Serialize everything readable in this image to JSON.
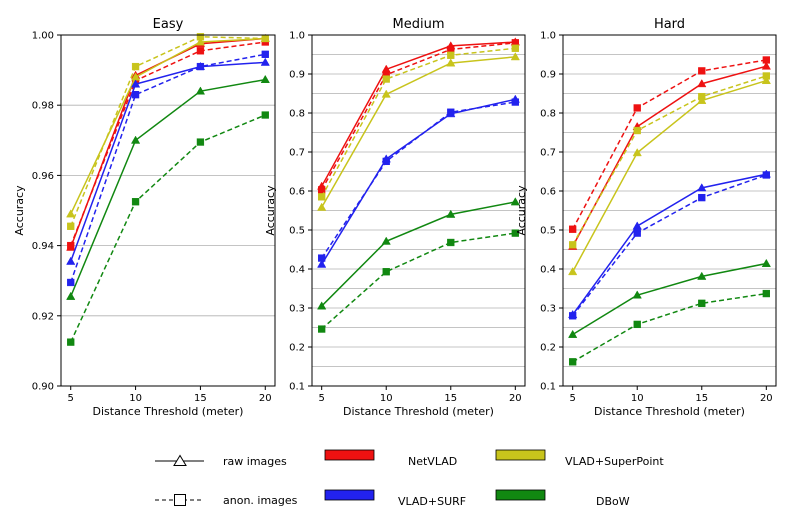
{
  "chart_data": {
    "type": "line",
    "x": [
      5,
      10,
      15,
      20
    ],
    "xlabel": "Distance Threshold (meter)",
    "ylabel": "Accuracy",
    "grid": "horizontal",
    "legend": {
      "placement": "bottom",
      "styles": [
        {
          "key": "raw",
          "label": "raw images",
          "marker": "triangle",
          "dash": "solid"
        },
        {
          "key": "anon",
          "label": "anon. images",
          "marker": "square",
          "dash": "dashed"
        }
      ],
      "methods": [
        {
          "key": "netvlad",
          "label": "NetVLAD",
          "color": "#ee1111"
        },
        {
          "key": "superpoint",
          "label": "VLAD+SuperPoint",
          "color": "#c8c41c"
        },
        {
          "key": "surf",
          "label": "VLAD+SURF",
          "color": "#2222ee"
        },
        {
          "key": "dbow",
          "label": "DBoW",
          "color": "#118811"
        }
      ]
    },
    "panels": [
      {
        "title": "Easy",
        "ylim": [
          0.9,
          1.0
        ],
        "yticks": [
          0.9,
          0.92,
          0.94,
          0.96,
          0.98,
          1.0
        ],
        "ytick_labels": [
          "0.90",
          "0.92",
          "0.94",
          "0.96",
          "0.98",
          "1.00"
        ],
        "grid_values": [
          0.92,
          0.94,
          0.96,
          0.98,
          1.0
        ],
        "series": [
          {
            "method": "netvlad",
            "style": "raw",
            "values": [
              0.9395,
              0.9885,
              0.9975,
              0.999
            ]
          },
          {
            "method": "netvlad",
            "style": "anon",
            "values": [
              0.94,
              0.987,
              0.9955,
              0.998
            ]
          },
          {
            "method": "superpoint",
            "style": "raw",
            "values": [
              0.949,
              0.988,
              0.998,
              0.999
            ]
          },
          {
            "method": "superpoint",
            "style": "anon",
            "values": [
              0.9455,
              0.991,
              0.9995,
              0.999
            ]
          },
          {
            "method": "surf",
            "style": "raw",
            "values": [
              0.9355,
              0.986,
              0.991,
              0.9922
            ]
          },
          {
            "method": "surf",
            "style": "anon",
            "values": [
              0.9295,
              0.983,
              0.991,
              0.9945
            ]
          },
          {
            "method": "dbow",
            "style": "raw",
            "values": [
              0.9255,
              0.97,
              0.984,
              0.9873
            ]
          },
          {
            "method": "dbow",
            "style": "anon",
            "values": [
              0.9125,
              0.9525,
              0.9695,
              0.9772
            ]
          }
        ]
      },
      {
        "title": "Medium",
        "ylim": [
          0.1,
          1.0
        ],
        "yticks": [
          0.1,
          0.2,
          0.3,
          0.4,
          0.5,
          0.6,
          0.7,
          0.8,
          0.9,
          1.0
        ],
        "ytick_labels": [
          "0.1",
          "0.2",
          "0.3",
          "0.4",
          "0.5",
          "0.6",
          "0.7",
          "0.8",
          "0.9",
          "1.0"
        ],
        "grid_values": [
          0.15,
          0.2,
          0.25,
          0.3,
          0.35,
          0.4,
          0.45,
          0.5,
          0.55,
          0.6,
          0.65,
          0.7,
          0.75,
          0.8,
          0.85,
          0.9,
          0.95,
          1.0
        ],
        "series": [
          {
            "method": "netvlad",
            "style": "raw",
            "values": [
              0.612,
              0.912,
              0.972,
              0.982
            ]
          },
          {
            "method": "netvlad",
            "style": "anon",
            "values": [
              0.603,
              0.898,
              0.963,
              0.98
            ]
          },
          {
            "method": "superpoint",
            "style": "raw",
            "values": [
              0.558,
              0.848,
              0.928,
              0.944
            ]
          },
          {
            "method": "superpoint",
            "style": "anon",
            "values": [
              0.585,
              0.887,
              0.948,
              0.966
            ]
          },
          {
            "method": "surf",
            "style": "raw",
            "values": [
              0.412,
              0.682,
              0.798,
              0.835
            ]
          },
          {
            "method": "surf",
            "style": "anon",
            "values": [
              0.428,
              0.676,
              0.802,
              0.828
            ]
          },
          {
            "method": "dbow",
            "style": "raw",
            "values": [
              0.305,
              0.471,
              0.54,
              0.572
            ]
          },
          {
            "method": "dbow",
            "style": "anon",
            "values": [
              0.246,
              0.393,
              0.468,
              0.492
            ]
          }
        ]
      },
      {
        "title": "Hard",
        "ylim": [
          0.1,
          1.0
        ],
        "yticks": [
          0.1,
          0.2,
          0.3,
          0.4,
          0.5,
          0.6,
          0.7,
          0.8,
          0.9,
          1.0
        ],
        "ytick_labels": [
          "0.1",
          "0.2",
          "0.3",
          "0.4",
          "0.5",
          "0.6",
          "0.7",
          "0.8",
          "0.9",
          "1.0"
        ],
        "grid_values": [
          0.15,
          0.2,
          0.25,
          0.3,
          0.35,
          0.4,
          0.45,
          0.5,
          0.55,
          0.6,
          0.65,
          0.7,
          0.75,
          0.8,
          0.85,
          0.9,
          0.95,
          1.0
        ],
        "series": [
          {
            "method": "netvlad",
            "style": "raw",
            "values": [
              0.458,
              0.765,
              0.875,
              0.92
            ]
          },
          {
            "method": "netvlad",
            "style": "anon",
            "values": [
              0.502,
              0.813,
              0.908,
              0.936
            ]
          },
          {
            "method": "superpoint",
            "style": "raw",
            "values": [
              0.393,
              0.698,
              0.832,
              0.883
            ]
          },
          {
            "method": "superpoint",
            "style": "anon",
            "values": [
              0.462,
              0.755,
              0.842,
              0.895
            ]
          },
          {
            "method": "surf",
            "style": "raw",
            "values": [
              0.283,
              0.51,
              0.608,
              0.643
            ]
          },
          {
            "method": "surf",
            "style": "anon",
            "values": [
              0.28,
              0.492,
              0.583,
              0.641
            ]
          },
          {
            "method": "dbow",
            "style": "raw",
            "values": [
              0.232,
              0.333,
              0.381,
              0.414
            ]
          },
          {
            "method": "dbow",
            "style": "anon",
            "values": [
              0.162,
              0.258,
              0.312,
              0.337
            ]
          }
        ]
      }
    ]
  }
}
